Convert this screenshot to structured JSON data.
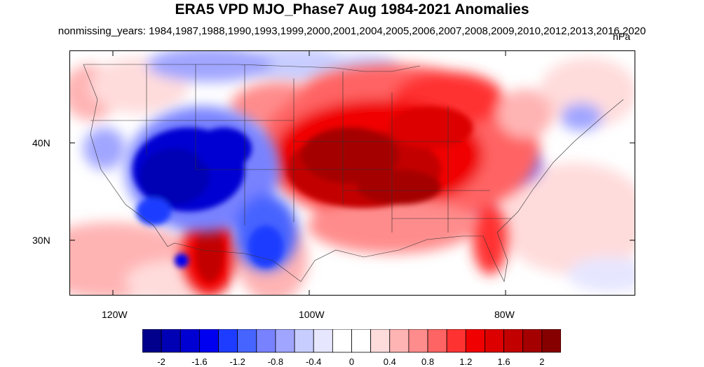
{
  "title": "ERA5 VPD MJO_Phase7 Aug 1984-2021 Anomalies",
  "subtitle": "nonmissing_years: 1984,1987,1988,1990,1993,1999,2000,2001,2004,2005,2006,2007,2008,2009,2010,2012,2013,2016,2020",
  "units": "hPa",
  "lon_ticks": [
    "120W",
    "100W",
    "80W"
  ],
  "lat_ticks": [
    "40N",
    "30N"
  ],
  "colorbar": {
    "labels": [
      "-2",
      "-1.6",
      "-1.2",
      "-0.8",
      "-0.4",
      "0",
      "0.4",
      "0.8",
      "1.2",
      "1.6",
      "2"
    ],
    "colors": [
      "#00008c",
      "#0000b4",
      "#0000d2",
      "#0000f0",
      "#1e3cff",
      "#4664ff",
      "#7882ff",
      "#a0a5ff",
      "#c8cdff",
      "#e6e6ff",
      "#ffffff",
      "#ffffff",
      "#ffdcdc",
      "#ffb4b4",
      "#ff8c8c",
      "#ff6464",
      "#ff3232",
      "#f00000",
      "#dc0000",
      "#c30000",
      "#a50000",
      "#870000"
    ]
  }
}
